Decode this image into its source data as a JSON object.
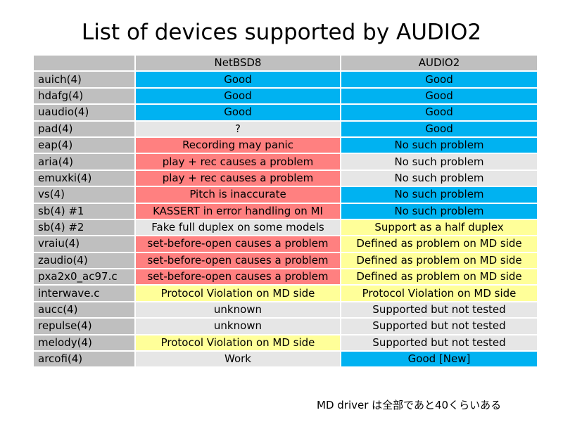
{
  "title": "List of devices supported by AUDIO2",
  "table": {
    "headers": [
      "",
      "NetBSD8",
      "AUDIO2"
    ],
    "rows": [
      {
        "device": "auich(4)",
        "netbsd8": "Good",
        "audio2": "Good",
        "c8": "good",
        "c2": "good"
      },
      {
        "device": "hdafg(4)",
        "netbsd8": "Good",
        "audio2": "Good",
        "c8": "good",
        "c2": "good"
      },
      {
        "device": "uaudio(4)",
        "netbsd8": "Good",
        "audio2": "Good",
        "c8": "good",
        "c2": "good"
      },
      {
        "device": "pad(4)",
        "netbsd8": "?",
        "audio2": "Good",
        "c8": "plain",
        "c2": "good"
      },
      {
        "device": "eap(4)",
        "netbsd8": "Recording may panic",
        "audio2": "No such problem",
        "c8": "bad",
        "c2": "good"
      },
      {
        "device": "aria(4)",
        "netbsd8": "play + rec causes a problem",
        "audio2": "No such problem",
        "c8": "bad",
        "c2": "plain"
      },
      {
        "device": "emuxki(4)",
        "netbsd8": "play + rec causes a problem",
        "audio2": "No such problem",
        "c8": "bad",
        "c2": "plain"
      },
      {
        "device": "vs(4)",
        "netbsd8": "Pitch is inaccurate",
        "audio2": "No such problem",
        "c8": "bad",
        "c2": "good"
      },
      {
        "device": "sb(4) #1",
        "netbsd8": "KASSERT in error handling on MI",
        "audio2": "No such problem",
        "c8": "bad",
        "c2": "good"
      },
      {
        "device": "sb(4) #2",
        "netbsd8": "Fake full duplex on some models",
        "audio2": "Support as a half duplex",
        "c8": "plain",
        "c2": "warn"
      },
      {
        "device": "vraiu(4)",
        "netbsd8": "set-before-open causes a problem",
        "audio2": "Defined as problem on MD side",
        "c8": "bad",
        "c2": "warn"
      },
      {
        "device": "zaudio(4)",
        "netbsd8": "set-before-open causes a problem",
        "audio2": "Defined as problem on MD side",
        "c8": "bad",
        "c2": "warn"
      },
      {
        "device": "pxa2x0_ac97.c",
        "netbsd8": "set-before-open causes a problem",
        "audio2": "Defined as problem on MD side",
        "c8": "bad",
        "c2": "warn"
      },
      {
        "device": "interwave.c",
        "netbsd8": "Protocol Violation on MD side",
        "audio2": "Protocol Violation on MD side",
        "c8": "warn",
        "c2": "warn"
      },
      {
        "device": "aucc(4)",
        "netbsd8": "unknown",
        "audio2": "Supported but not tested",
        "c8": "plain",
        "c2": "plain"
      },
      {
        "device": "repulse(4)",
        "netbsd8": "unknown",
        "audio2": "Supported but not tested",
        "c8": "plain",
        "c2": "plain"
      },
      {
        "device": "melody(4)",
        "netbsd8": "Protocol Violation on MD side",
        "audio2": "Supported but not tested",
        "c8": "warn",
        "c2": "plain"
      },
      {
        "device": "arcofi(4)",
        "netbsd8": "Work",
        "audio2": "Good [New]",
        "c8": "plain",
        "c2": "good"
      }
    ]
  },
  "colors": {
    "good": "#00b2f1",
    "bad": "#ff8080",
    "warn": "#ffff99",
    "plain": "#e6e6e6",
    "label": "#bfbfbf"
  },
  "footnote": "MD driver は全部であと40くらいある"
}
